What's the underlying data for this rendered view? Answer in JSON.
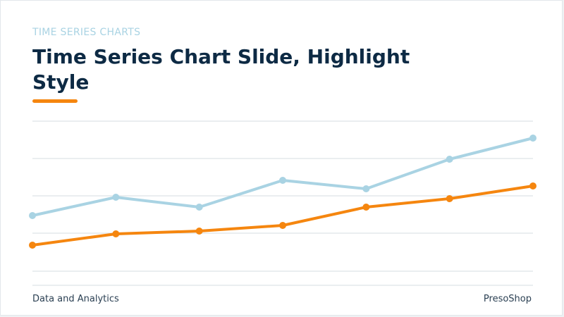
{
  "slide": {
    "eyebrow": "TIME SERIES CHARTS",
    "title": "Time Series Chart Slide, Highlight Style",
    "footer_left": "Data and Analytics",
    "footer_right": "PresoShop",
    "accent_color": "#f5860f",
    "background": "#ffffff"
  },
  "chart_data": {
    "type": "line",
    "title": "",
    "xlabel": "",
    "ylabel": "",
    "x": [
      1,
      2,
      3,
      4,
      5,
      6,
      7
    ],
    "ylim": [
      0,
      100
    ],
    "grid": true,
    "series": [
      {
        "values": [
          45,
          58,
          51,
          70,
          64,
          85,
          100
        ],
        "color": "#a9d3e3"
      },
      {
        "values": [
          24,
          32,
          34,
          38,
          51,
          57,
          66
        ],
        "color": "#f5860f"
      }
    ]
  }
}
